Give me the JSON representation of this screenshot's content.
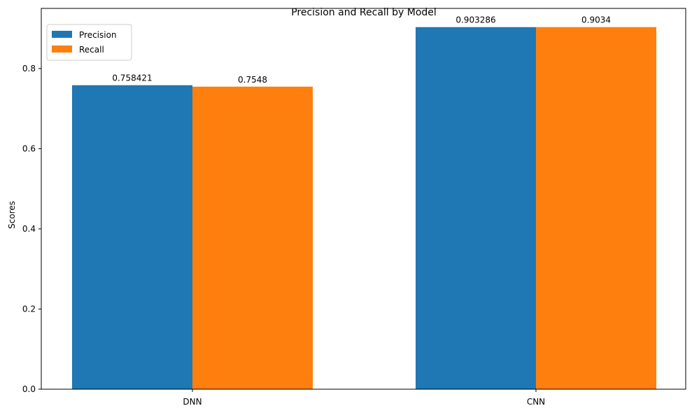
{
  "chart_data": {
    "type": "bar",
    "title": "Precision and Recall by Model",
    "xlabel": "",
    "ylabel": "Scores",
    "categories": [
      "DNN",
      "CNN"
    ],
    "series": [
      {
        "name": "Precision",
        "values": [
          0.758421,
          0.903286
        ],
        "labels": [
          "0.758421",
          "0.903286"
        ],
        "color": "#1f77b4"
      },
      {
        "name": "Recall",
        "values": [
          0.7548,
          0.9034
        ],
        "labels": [
          "0.7548",
          "0.9034"
        ],
        "color": "#ff7f0e"
      }
    ],
    "ylim": [
      0,
      0.95
    ],
    "yticks": [
      0.0,
      0.2,
      0.4,
      0.6,
      0.8
    ],
    "ytick_labels": [
      "0.0",
      "0.2",
      "0.4",
      "0.6",
      "0.8"
    ],
    "grid": false,
    "legend": "top-left"
  }
}
